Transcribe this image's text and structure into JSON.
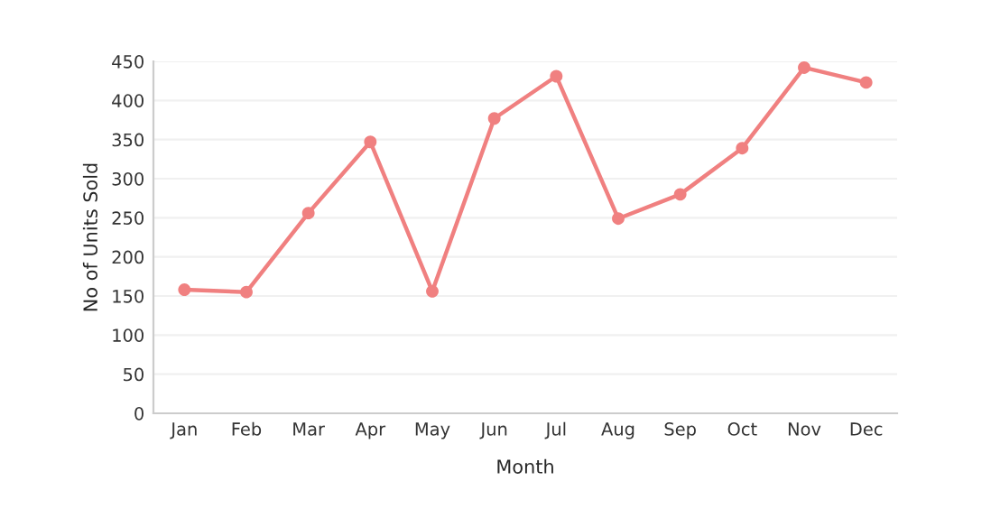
{
  "chart_data": {
    "type": "line",
    "xlabel": "Month",
    "ylabel": "No of Units Sold",
    "categories": [
      "Jan",
      "Feb",
      "Mar",
      "Apr",
      "May",
      "Jun",
      "Jul",
      "Aug",
      "Sep",
      "Oct",
      "Nov",
      "Dec"
    ],
    "series": [
      {
        "color": "#f08080",
        "values": [
          158,
          155,
          256,
          347,
          156,
          377,
          431,
          249,
          280,
          339,
          442,
          423
        ]
      }
    ],
    "ylim": [
      0,
      450
    ],
    "yticks": [
      0,
      50,
      100,
      150,
      200,
      250,
      300,
      350,
      400,
      450
    ],
    "grid": "y",
    "marker": "circle",
    "line_style": "solid",
    "legend": false
  }
}
